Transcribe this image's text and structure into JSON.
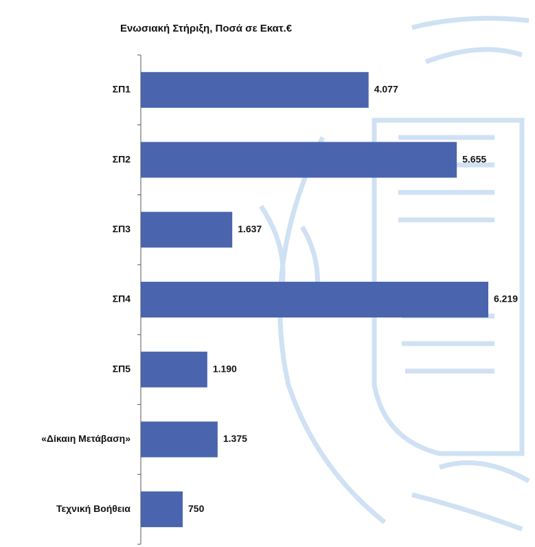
{
  "chart_data": {
    "type": "bar",
    "orientation": "horizontal",
    "title": "Ενωσιακή Στήριξη, Ποσά σε Εκατ.€",
    "categories": [
      "ΣΠ1",
      "ΣΠ2",
      "ΣΠ3",
      "ΣΠ4",
      "ΣΠ5",
      "«Δίκαιη Μετάβαση»",
      "Τεχνική Βοήθεια"
    ],
    "values": [
      4077,
      5655,
      1637,
      6219,
      1190,
      1375,
      750
    ],
    "value_labels": [
      "4.077",
      "5.655",
      "1.637",
      "6.219",
      "1.190",
      "1.375",
      "750"
    ],
    "color": "#4a65ad"
  }
}
